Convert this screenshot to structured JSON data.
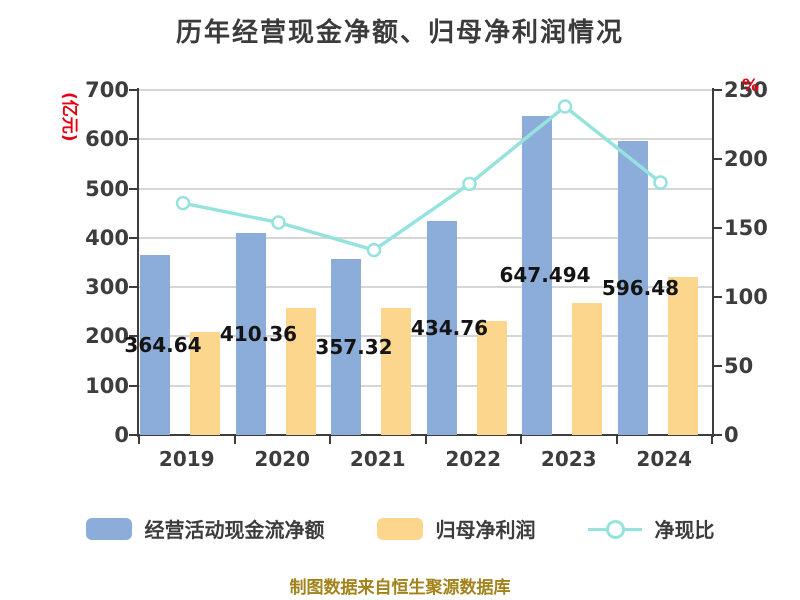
{
  "title": "历年经营现金净额、归母净利润情况",
  "footer": "制图数据来自恒生聚源数据库",
  "colors": {
    "bar_cashflow": "#8cacda",
    "bar_profit": "#fbd68c",
    "line_ratio": "#96e3dd",
    "line_marker_fill": "#ffffff",
    "axis_text": "#3d3d3d",
    "axis_unit_red": "#e60012",
    "gridline": "#d6d6d6",
    "title_text": "#3b3b3b",
    "footer_gold": "#a2831b",
    "bar_value_label": "#141414"
  },
  "chart_data": {
    "type": "bar",
    "subtype": "grouped-bars-with-line-overlay",
    "title": "历年经营现金净额、归母净利润情况",
    "categories": [
      "2019",
      "2020",
      "2021",
      "2022",
      "2023",
      "2024"
    ],
    "series": [
      {
        "name": "经营活动现金流净额",
        "type": "bar",
        "axis": "left",
        "color": "#8cacda",
        "values": [
          364.64,
          410.36,
          357.32,
          434.76,
          647.494,
          596.48
        ],
        "value_labels": [
          "364.64",
          "410.36",
          "357.32",
          "434.76",
          "647.494",
          "596.48"
        ]
      },
      {
        "name": "归母净利润",
        "type": "bar",
        "axis": "left",
        "color": "#fbd68c",
        "values": [
          209,
          258,
          258,
          231,
          268,
          321
        ]
      },
      {
        "name": "净现比",
        "type": "line",
        "axis": "right",
        "color": "#96e3dd",
        "values": [
          168,
          154,
          134,
          182,
          238,
          183
        ]
      }
    ],
    "left_axis": {
      "label": "(亿元)",
      "min": 0,
      "max": 700,
      "ticks": [
        "0",
        "100",
        "200",
        "300",
        "400",
        "500",
        "600",
        "700"
      ]
    },
    "right_axis": {
      "label": "%",
      "min": 0,
      "max": 250,
      "ticks": [
        "0",
        "50",
        "100",
        "150",
        "200",
        "250"
      ]
    },
    "grid": true,
    "legend_position": "bottom"
  },
  "legend": {
    "items": [
      "经营活动现金流净额",
      "归母净利润",
      "净现比"
    ]
  }
}
